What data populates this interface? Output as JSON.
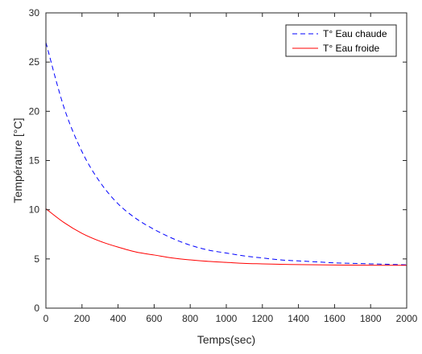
{
  "chart_data": {
    "type": "line",
    "xlabel": "Temps(sec)",
    "ylabel": "Température [°C]",
    "xlim": [
      0,
      2000
    ],
    "ylim": [
      0,
      30
    ],
    "xticks": [
      0,
      200,
      400,
      600,
      800,
      1000,
      1200,
      1400,
      1600,
      1800,
      2000
    ],
    "yticks": [
      0,
      5,
      10,
      15,
      20,
      25,
      30
    ],
    "grid": false,
    "legend_position": "top-right",
    "series": [
      {
        "name": "T° Eau chaude",
        "color": "#0000ff",
        "line_style": "dashed",
        "x": [
          0,
          100,
          200,
          300,
          400,
          500,
          600,
          700,
          800,
          900,
          1000,
          1100,
          1200,
          1300,
          1400,
          1500,
          1600,
          1700,
          1800,
          1900,
          2000
        ],
        "y": [
          27.0,
          20.4,
          15.9,
          12.8,
          10.6,
          9.1,
          8.0,
          7.1,
          6.4,
          5.9,
          5.6,
          5.3,
          5.1,
          4.9,
          4.8,
          4.7,
          4.6,
          4.55,
          4.5,
          4.45,
          4.4
        ]
      },
      {
        "name": "T° Eau froide",
        "color": "#ff0000",
        "line_style": "solid",
        "x": [
          0,
          100,
          200,
          300,
          400,
          500,
          600,
          700,
          800,
          900,
          1000,
          1100,
          1200,
          1300,
          1400,
          1500,
          1600,
          1700,
          1800,
          1900,
          2000
        ],
        "y": [
          10.1,
          8.7,
          7.6,
          6.8,
          6.2,
          5.7,
          5.4,
          5.1,
          4.9,
          4.75,
          4.65,
          4.55,
          4.5,
          4.45,
          4.42,
          4.4,
          4.38,
          4.37,
          4.36,
          4.35,
          4.35
        ]
      }
    ]
  }
}
